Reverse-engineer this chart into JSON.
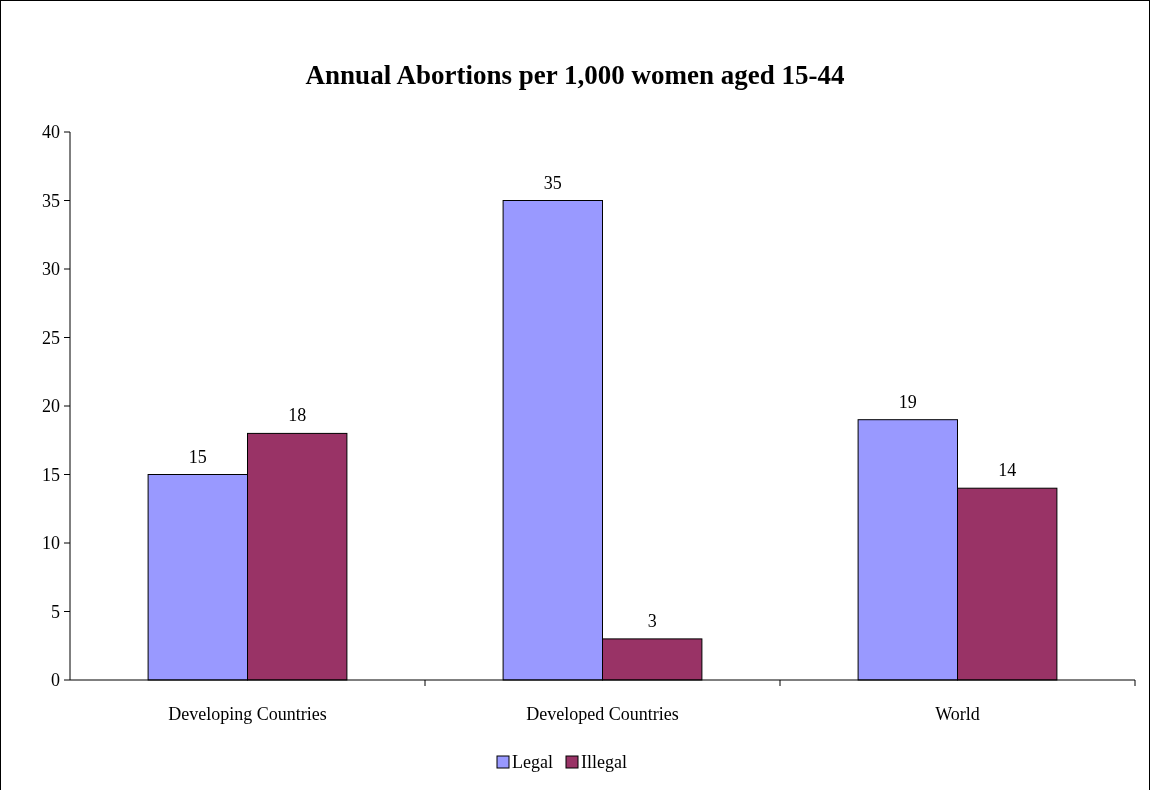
{
  "chart_data": {
    "type": "bar",
    "title": "Annual Abortions per 1,000 women aged 15-44",
    "categories": [
      "Developing Countries",
      "Developed Countries",
      "World"
    ],
    "series": [
      {
        "name": "Legal",
        "color": "#9999ff",
        "values": [
          15,
          35,
          19
        ]
      },
      {
        "name": "Illegal",
        "color": "#993366",
        "values": [
          18,
          3,
          14
        ]
      }
    ],
    "ylim": [
      0,
      40
    ],
    "yticks": [
      0,
      5,
      10,
      15,
      20,
      25,
      30,
      35,
      40
    ],
    "data_labels": true,
    "legend": "bottom",
    "grid": false
  }
}
